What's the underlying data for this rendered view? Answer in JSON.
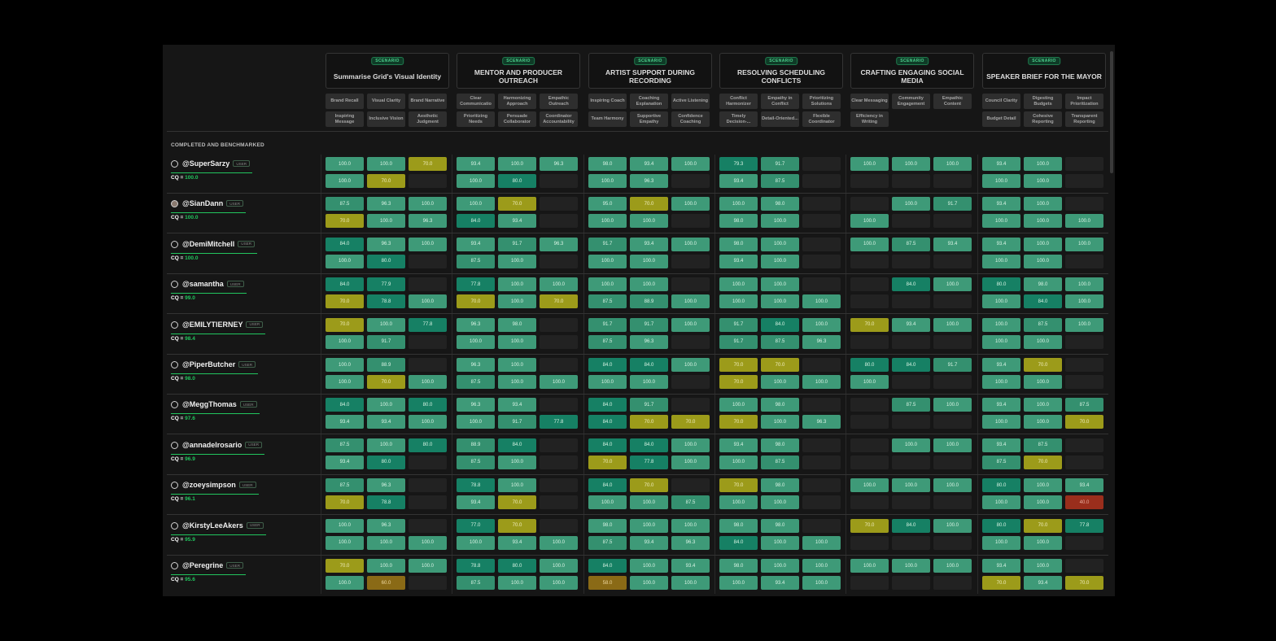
{
  "section_label": "COMPLETED AND BENCHMARKED",
  "badge_label": "USER",
  "cq_prefix": "CQ = ",
  "scenario_tag": "SCENARIO",
  "scenarios": [
    {
      "title": "Summarise Grid's Visual Identity",
      "criteria": [
        "Brand Recall",
        "Visual Clarity",
        "Brand Narrative",
        "Inspiring Message",
        "Inclusive Vision",
        "Aesthetic Judgment"
      ]
    },
    {
      "title": "MENTOR AND PRODUCER OUTREACH",
      "criteria": [
        "Clear Communicatio",
        "Harmonizing Approach",
        "Empathic Outreach",
        "Prioritizing Needs",
        "Persuade Collaborator",
        "Coordinator Accountability"
      ]
    },
    {
      "title": "ARTIST SUPPORT DURING RECORDING",
      "criteria": [
        "Inspiring Coach",
        "Coaching Explanation",
        "Active Listening",
        "Team Harmony",
        "Supportive Empathy",
        "Confidence Coaching"
      ]
    },
    {
      "title": "RESOLVING SCHEDULING CONFLICTS",
      "criteria": [
        "Conflict Harmonizer",
        "Empathy in Conflict",
        "Prioritizing Solutions",
        "Timely Decision-...",
        "Detail-Oriented...",
        "Flexible Coordinator"
      ]
    },
    {
      "title": "CRAFTING ENGAGING SOCIAL MEDIA",
      "criteria": [
        "Clear Messaging",
        "Community Engagement",
        "Empathic Content",
        "Efficiency in Writing",
        "",
        ""
      ]
    },
    {
      "title": "SPEAKER BRIEF FOR THE MAYOR",
      "criteria": [
        "Council Clarity",
        "Digesting Budgets",
        "Impact Prioritization",
        "Budget Detail",
        "Cohesive Reporting",
        "Transparent Reporting"
      ]
    }
  ],
  "users": [
    {
      "name": "@SuperSarzy",
      "cq": "100.0",
      "avatar": "circle",
      "rows": [
        [
          "100.0",
          "100.0",
          "70.0",
          "93.4",
          "100.0",
          "96.3",
          "98.0",
          "93.4",
          "100.0",
          "79.3",
          "91.7",
          "",
          "100.0",
          "100.0",
          "100.0",
          "93.4",
          "100.0",
          ""
        ],
        [
          "100.0",
          "70.0",
          "",
          "100.0",
          "80.0",
          "",
          "100.0",
          "96.3",
          "",
          "93.4",
          "87.5",
          "",
          "",
          "",
          "",
          "100.0",
          "100.0",
          ""
        ]
      ]
    },
    {
      "name": "@SianDann",
      "cq": "100.0",
      "avatar": "photo",
      "rows": [
        [
          "87.5",
          "96.3",
          "100.0",
          "100.0",
          "70.0",
          "",
          "95.0",
          "70.0",
          "100.0",
          "100.0",
          "98.0",
          "",
          "",
          "100.0",
          "91.7",
          "93.4",
          "100.0",
          ""
        ],
        [
          "70.0",
          "100.0",
          "96.3",
          "84.0",
          "93.4",
          "",
          "100.0",
          "100.0",
          "",
          "98.0",
          "100.0",
          "",
          "100.0",
          "",
          "",
          "100.0",
          "100.0",
          "100.0"
        ]
      ]
    },
    {
      "name": "@DemiMitchell",
      "cq": "100.0",
      "avatar": "circle",
      "rows": [
        [
          "84.0",
          "96.3",
          "100.0",
          "93.4",
          "91.7",
          "96.3",
          "91.7",
          "93.4",
          "100.0",
          "98.0",
          "100.0",
          "",
          "100.0",
          "87.5",
          "93.4",
          "93.4",
          "100.0",
          "100.0"
        ],
        [
          "100.0",
          "80.0",
          "",
          "87.5",
          "100.0",
          "",
          "100.0",
          "100.0",
          "",
          "93.4",
          "100.0",
          "",
          "",
          "",
          "",
          "100.0",
          "100.0",
          ""
        ]
      ]
    },
    {
      "name": "@samantha",
      "cq": "99.0",
      "avatar": "circle",
      "rows": [
        [
          "84.0",
          "77.9",
          "",
          "77.8",
          "100.0",
          "100.0",
          "100.0",
          "100.0",
          "",
          "100.0",
          "100.0",
          "",
          "",
          "84.0",
          "100.0",
          "80.0",
          "98.0",
          "100.0"
        ],
        [
          "70.0",
          "78.8",
          "100.0",
          "70.0",
          "100.0",
          "70.0",
          "87.5",
          "88.9",
          "100.0",
          "100.0",
          "100.0",
          "100.0",
          "",
          "",
          "",
          "100.0",
          "84.0",
          "100.0"
        ]
      ]
    },
    {
      "name": "@EMILYTIERNEY",
      "cq": "98.4",
      "avatar": "circle",
      "rows": [
        [
          "70.0",
          "100.0",
          "77.8",
          "96.3",
          "98.0",
          "",
          "91.7",
          "91.7",
          "100.0",
          "91.7",
          "84.0",
          "100.0",
          "70.0",
          "93.4",
          "100.0",
          "100.0",
          "87.5",
          "100.0"
        ],
        [
          "100.0",
          "91.7",
          "",
          "100.0",
          "100.0",
          "",
          "87.5",
          "96.3",
          "",
          "91.7",
          "87.5",
          "96.3",
          "",
          "",
          "",
          "100.0",
          "100.0",
          ""
        ]
      ]
    },
    {
      "name": "@PiperButcher",
      "cq": "98.0",
      "avatar": "circle",
      "rows": [
        [
          "100.0",
          "88.9",
          "",
          "96.3",
          "100.0",
          "",
          "84.0",
          "84.0",
          "100.0",
          "70.0",
          "70.0",
          "",
          "80.0",
          "84.0",
          "91.7",
          "93.4",
          "70.0",
          ""
        ],
        [
          "100.0",
          "70.0",
          "100.0",
          "87.5",
          "100.0",
          "100.0",
          "100.0",
          "100.0",
          "",
          "70.0",
          "100.0",
          "100.0",
          "100.0",
          "",
          "",
          "100.0",
          "100.0",
          ""
        ]
      ]
    },
    {
      "name": "@MeggThomas",
      "cq": "97.6",
      "avatar": "circle",
      "rows": [
        [
          "84.0",
          "100.0",
          "80.0",
          "96.3",
          "93.4",
          "",
          "84.0",
          "91.7",
          "",
          "100.0",
          "98.0",
          "",
          "",
          "87.5",
          "100.0",
          "93.4",
          "100.0",
          "87.5"
        ],
        [
          "93.4",
          "93.4",
          "100.0",
          "100.0",
          "91.7",
          "77.8",
          "84.0",
          "70.0",
          "70.0",
          "70.0",
          "100.0",
          "96.3",
          "",
          "",
          "",
          "100.0",
          "100.0",
          "70.0"
        ]
      ]
    },
    {
      "name": "@annadelrosario",
      "cq": "96.9",
      "avatar": "circle",
      "rows": [
        [
          "87.5",
          "100.0",
          "80.0",
          "88.9",
          "84.0",
          "",
          "84.0",
          "84.0",
          "100.0",
          "93.4",
          "98.0",
          "",
          "",
          "100.0",
          "100.0",
          "93.4",
          "87.5",
          ""
        ],
        [
          "93.4",
          "80.0",
          "",
          "87.5",
          "100.0",
          "",
          "70.0",
          "77.8",
          "100.0",
          "100.0",
          "87.5",
          "",
          "",
          "",
          "",
          "87.5",
          "70.0",
          ""
        ]
      ]
    },
    {
      "name": "@zoeysimpson",
      "cq": "96.1",
      "avatar": "circle",
      "rows": [
        [
          "87.5",
          "96.3",
          "",
          "78.8",
          "100.0",
          "",
          "84.0",
          "70.0",
          "",
          "70.0",
          "98.0",
          "",
          "100.0",
          "100.0",
          "100.0",
          "80.0",
          "100.0",
          "93.4"
        ],
        [
          "70.0",
          "78.8",
          "",
          "93.4",
          "70.0",
          "",
          "100.0",
          "100.0",
          "87.5",
          "100.0",
          "100.0",
          "",
          "",
          "",
          "",
          "100.0",
          "100.0",
          "40.0"
        ]
      ]
    },
    {
      "name": "@KirstyLeeAkers",
      "cq": "95.9",
      "avatar": "circle",
      "rows": [
        [
          "100.0",
          "96.3",
          "",
          "77.0",
          "70.0",
          "",
          "98.0",
          "100.0",
          "100.0",
          "98.0",
          "98.0",
          "",
          "70.0",
          "84.0",
          "100.0",
          "80.0",
          "70.0",
          "77.8"
        ],
        [
          "100.0",
          "100.0",
          "100.0",
          "100.0",
          "93.4",
          "100.0",
          "87.5",
          "93.4",
          "96.3",
          "84.0",
          "100.0",
          "100.0",
          "",
          "",
          "",
          "100.0",
          "100.0",
          ""
        ]
      ]
    },
    {
      "name": "@Peregrine",
      "cq": "95.6",
      "avatar": "circle",
      "rows": [
        [
          "70.0",
          "100.0",
          "100.0",
          "78.8",
          "80.0",
          "100.0",
          "84.0",
          "100.0",
          "93.4",
          "98.0",
          "100.0",
          "100.0",
          "100.0",
          "100.0",
          "100.0",
          "93.4",
          "100.0",
          ""
        ],
        [
          "100.0",
          "60.0",
          "",
          "87.5",
          "100.0",
          "100.0",
          "58.0",
          "100.0",
          "100.0",
          "100.0",
          "93.4",
          "100.0",
          "",
          "",
          "",
          "70.0",
          "93.4",
          "70.0"
        ]
      ]
    }
  ],
  "colors": {
    "accent_green": "#22c55e",
    "high": "#3e9a78",
    "mid": "#168064",
    "low_yellow": "#9c9b1a",
    "orange": "#8a6a16",
    "red": "#9a2e1c"
  }
}
